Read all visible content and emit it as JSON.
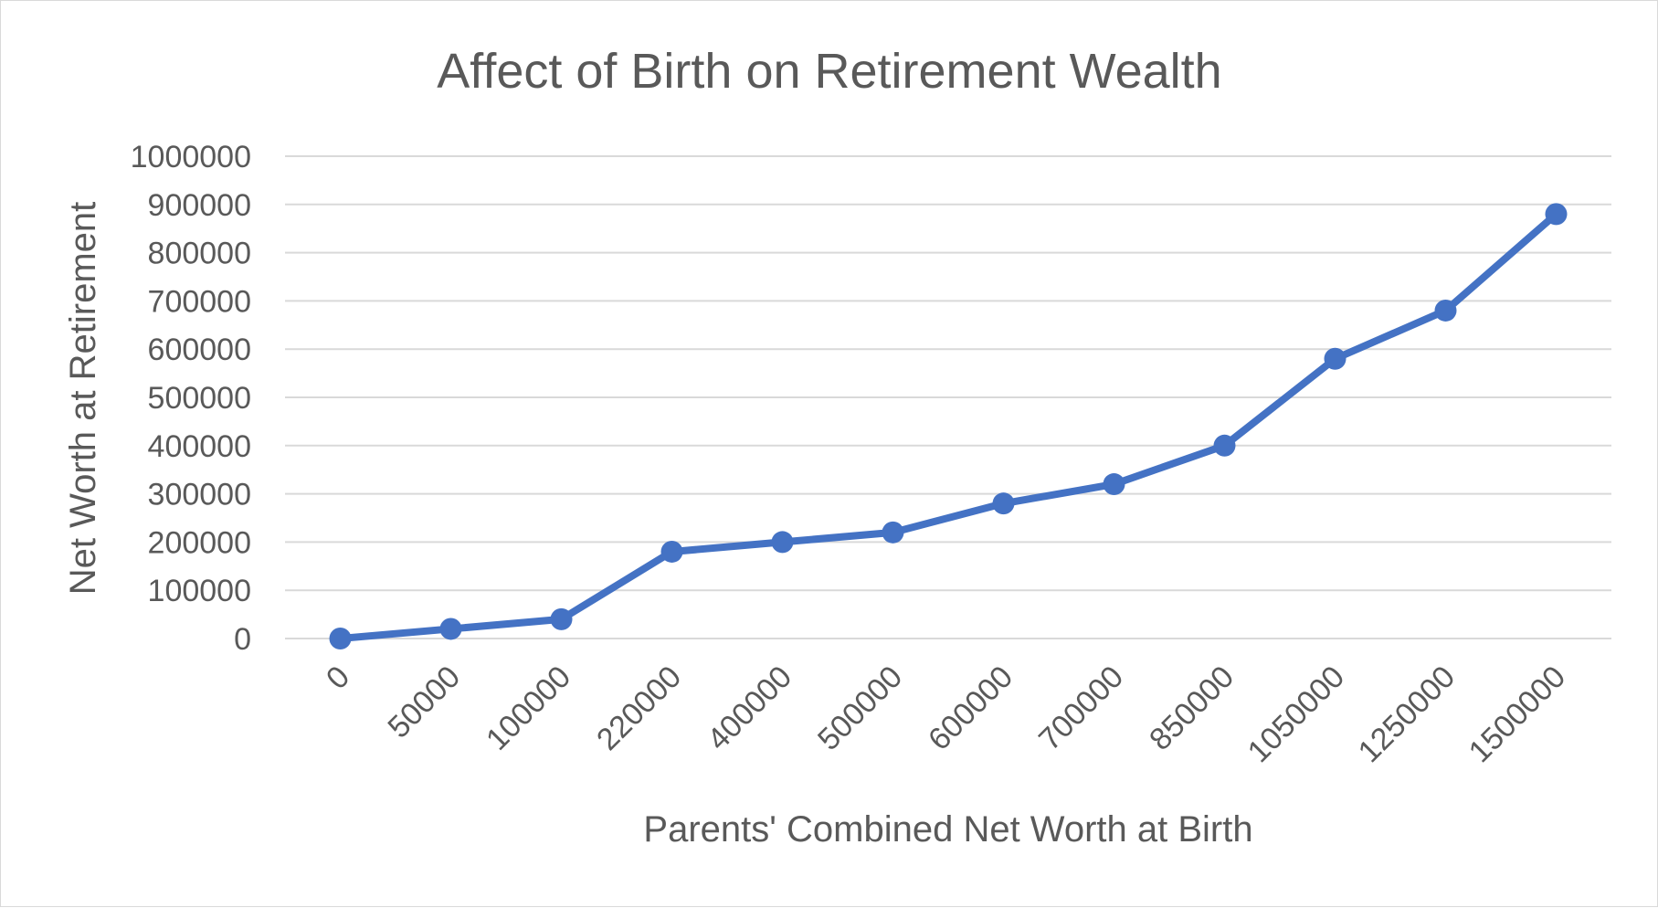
{
  "chart_data": {
    "type": "line",
    "title": "Affect of Birth on Retirement Wealth",
    "xlabel": "Parents' Combined Net Worth at Birth",
    "ylabel": "Net Worth at Retirement",
    "categories": [
      "0",
      "50000",
      "100000",
      "220000",
      "400000",
      "500000",
      "600000",
      "700000",
      "850000",
      "1050000",
      "1250000",
      "1500000"
    ],
    "series": [
      {
        "values": [
          0,
          20000,
          40000,
          180000,
          200000,
          220000,
          280000,
          320000,
          400000,
          580000,
          680000,
          880000
        ]
      }
    ],
    "ylim": [
      0,
      1000000
    ],
    "yticks": [
      "0",
      "100000",
      "200000",
      "300000",
      "400000",
      "500000",
      "600000",
      "700000",
      "800000",
      "900000",
      "1000000"
    ],
    "grid": true,
    "legend": "none",
    "colors": {
      "series": "#4472c4",
      "grid": "#d9d9d9",
      "text": "#595959"
    },
    "marker": "circle"
  }
}
